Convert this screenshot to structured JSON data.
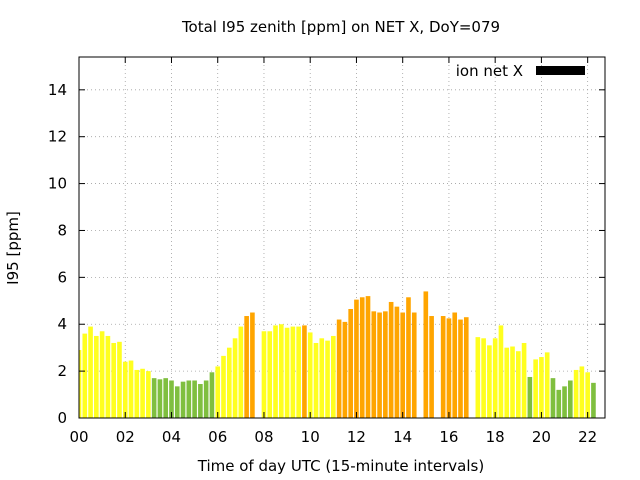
{
  "chart_data": {
    "type": "bar",
    "title": "Total I95 zenith [ppm] on NET X, DoY=079",
    "xlabel": "Time of day UTC (15-minute intervals)",
    "ylabel": "I95 [ppm]",
    "ylim": [
      0,
      15.4
    ],
    "xlim": [
      0,
      22.75
    ],
    "grid": true,
    "legend": {
      "label": "ion net X",
      "color": "#000000",
      "position": "top-right"
    },
    "x_ticks": [
      "00",
      "02",
      "04",
      "06",
      "08",
      "10",
      "12",
      "14",
      "16",
      "18",
      "20",
      "22"
    ],
    "y_ticks": [
      "0",
      "2",
      "4",
      "6",
      "8",
      "10",
      "12",
      "14"
    ],
    "level_colors": {
      "low": "#7fbf3f",
      "medium": "#ffff1f",
      "high": "#ffa500"
    },
    "interval_hours": 0.25,
    "values": [
      2.9,
      3.6,
      3.9,
      3.5,
      3.7,
      3.5,
      3.2,
      3.25,
      2.4,
      2.45,
      2.05,
      2.1,
      2.0,
      1.7,
      1.65,
      1.7,
      1.6,
      1.35,
      1.55,
      1.6,
      1.6,
      1.45,
      1.6,
      1.95,
      2.2,
      2.65,
      3.0,
      3.4,
      3.9,
      4.35,
      4.5,
      0,
      3.7,
      3.7,
      3.95,
      4.0,
      3.85,
      3.9,
      3.9,
      3.95,
      3.65,
      3.2,
      3.4,
      3.3,
      3.5,
      4.2,
      4.1,
      4.65,
      5.05,
      5.15,
      5.2,
      4.55,
      4.5,
      4.55,
      4.95,
      4.75,
      4.5,
      5.15,
      4.5,
      0,
      5.4,
      4.35,
      0,
      4.35,
      4.25,
      4.5,
      4.2,
      4.3,
      0,
      3.45,
      3.4,
      3.1,
      3.4,
      3.95,
      3.0,
      3.05,
      2.85,
      3.2,
      1.75,
      2.5,
      2.6,
      2.8,
      1.7,
      1.2,
      1.35,
      1.6,
      2.05,
      2.2,
      1.95,
      1.5
    ],
    "levels": [
      "medium",
      "medium",
      "medium",
      "medium",
      "medium",
      "medium",
      "medium",
      "medium",
      "medium",
      "medium",
      "medium",
      "medium",
      "medium",
      "low",
      "low",
      "low",
      "low",
      "low",
      "low",
      "low",
      "low",
      "low",
      "low",
      "low",
      "medium",
      "medium",
      "medium",
      "medium",
      "medium",
      "high",
      "high",
      "high",
      "medium",
      "medium",
      "medium",
      "medium",
      "medium",
      "medium",
      "medium",
      "high",
      "medium",
      "medium",
      "medium",
      "medium",
      "medium",
      "high",
      "high",
      "high",
      "high",
      "high",
      "high",
      "high",
      "high",
      "high",
      "high",
      "high",
      "high",
      "high",
      "high",
      "high",
      "high",
      "high",
      "high",
      "high",
      "high",
      "high",
      "high",
      "high",
      "high",
      "medium",
      "medium",
      "medium",
      "medium",
      "medium",
      "medium",
      "medium",
      "medium",
      "medium",
      "low",
      "medium",
      "medium",
      "medium",
      "low",
      "low",
      "low",
      "low",
      "medium",
      "medium",
      "medium",
      "low"
    ]
  }
}
